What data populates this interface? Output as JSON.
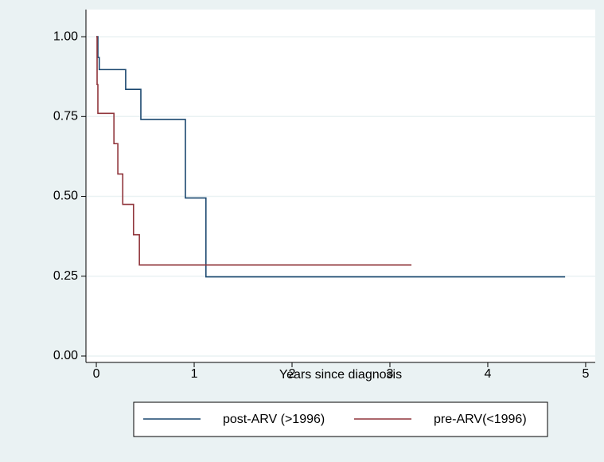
{
  "chart_data": {
    "type": "step",
    "x_label": "Years since diagnosis",
    "series": [
      {
        "name": "post-ARV (>1996)",
        "color": "#1a476f",
        "x": [
          0,
          0.016,
          0.03,
          0.3,
          0.455,
          0.91,
          1.12,
          4.79
        ],
        "values": [
          1.0,
          0.935,
          0.897,
          0.835,
          0.741,
          0.495,
          0.248,
          0.248
        ]
      },
      {
        "name": "pre-ARV(<1996)",
        "color": "#90353b",
        "x": [
          0,
          0.008,
          0.016,
          0.18,
          0.22,
          0.27,
          0.38,
          0.44,
          3.22
        ],
        "values": [
          1.0,
          0.85,
          0.76,
          0.665,
          0.57,
          0.475,
          0.38,
          0.285,
          0.285
        ]
      }
    ],
    "xlim": [
      -0.106,
      5.098
    ],
    "xticks": [
      0,
      1,
      2,
      3,
      4,
      5
    ],
    "ylim": [
      -0.02,
      1.085
    ],
    "yticks": [
      {
        "value": 0,
        "label": "0.00"
      },
      0.25,
      {
        "value": 0.5,
        "label": "0.50"
      },
      0.75,
      {
        "value": 1,
        "label": "1.00"
      }
    ],
    "grid": true
  }
}
